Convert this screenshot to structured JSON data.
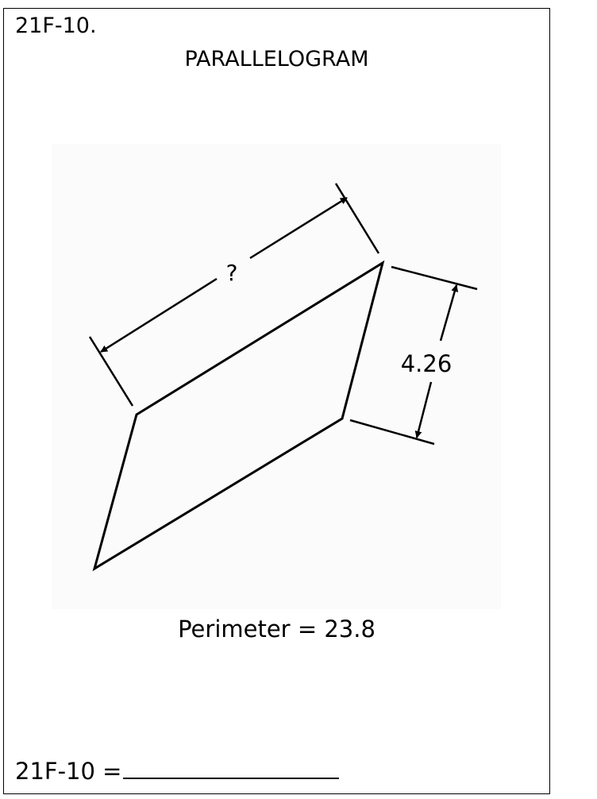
{
  "header": {
    "problem_id": "21F-10.",
    "title": "PARALLELOGRAM"
  },
  "figure": {
    "shape": "parallelogram",
    "unknown_side_label": "?",
    "known_side_label": "4.26"
  },
  "given": {
    "perimeter_text": "Perimeter = 23.8"
  },
  "answer": {
    "prompt": "21F-10 ="
  }
}
